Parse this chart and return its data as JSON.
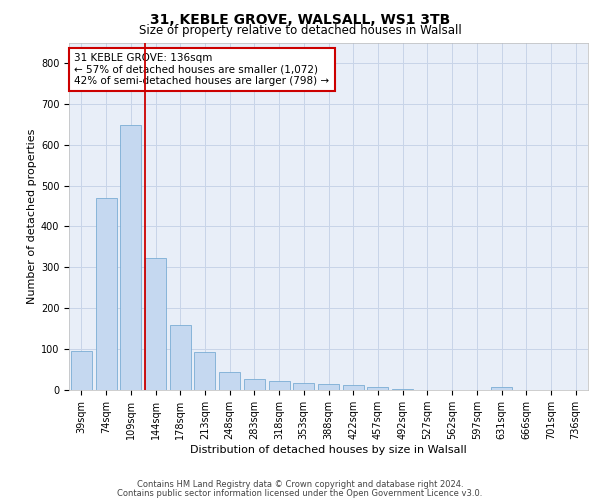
{
  "title1": "31, KEBLE GROVE, WALSALL, WS1 3TB",
  "title2": "Size of property relative to detached houses in Walsall",
  "xlabel": "Distribution of detached houses by size in Walsall",
  "ylabel": "Number of detached properties",
  "categories": [
    "39sqm",
    "74sqm",
    "109sqm",
    "144sqm",
    "178sqm",
    "213sqm",
    "248sqm",
    "283sqm",
    "318sqm",
    "353sqm",
    "388sqm",
    "422sqm",
    "457sqm",
    "492sqm",
    "527sqm",
    "562sqm",
    "597sqm",
    "631sqm",
    "666sqm",
    "701sqm",
    "736sqm"
  ],
  "values": [
    95,
    470,
    648,
    323,
    158,
    93,
    45,
    28,
    22,
    16,
    15,
    13,
    8,
    3,
    0,
    0,
    0,
    8,
    0,
    0,
    0
  ],
  "bar_color": "#c5d8f0",
  "bar_edge_color": "#7aadd4",
  "vertical_line_x": 2.57,
  "annotation_text": "31 KEBLE GROVE: 136sqm\n← 57% of detached houses are smaller (1,072)\n42% of semi-detached houses are larger (798) →",
  "annotation_box_color": "#ffffff",
  "annotation_box_edge": "#cc0000",
  "vline_color": "#cc0000",
  "grid_color": "#c8d4e8",
  "background_color": "#e8eef8",
  "footer_line1": "Contains HM Land Registry data © Crown copyright and database right 2024.",
  "footer_line2": "Contains public sector information licensed under the Open Government Licence v3.0.",
  "ylim": [
    0,
    850
  ],
  "yticks": [
    0,
    100,
    200,
    300,
    400,
    500,
    600,
    700,
    800
  ],
  "title1_fontsize": 10,
  "title2_fontsize": 8.5,
  "tick_fontsize": 7,
  "ylabel_fontsize": 8,
  "xlabel_fontsize": 8,
  "annot_fontsize": 7.5,
  "footer_fontsize": 6
}
